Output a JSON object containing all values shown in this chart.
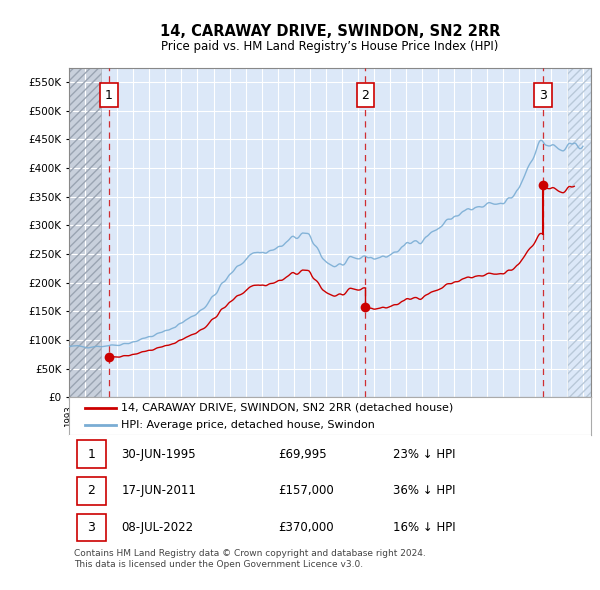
{
  "title": "14, CARAWAY DRIVE, SWINDON, SN2 2RR",
  "subtitle": "Price paid vs. HM Land Registry’s House Price Index (HPI)",
  "footer": "Contains HM Land Registry data © Crown copyright and database right 2024.\nThis data is licensed under the Open Government Licence v3.0.",
  "legend_line1": "14, CARAWAY DRIVE, SWINDON, SN2 2RR (detached house)",
  "legend_line2": "HPI: Average price, detached house, Swindon",
  "transactions": [
    {
      "num": 1,
      "date": "30-JUN-1995",
      "price": "£69,995",
      "pct": "23% ↓ HPI",
      "year": 1995.49
    },
    {
      "num": 2,
      "date": "17-JUN-2011",
      "price": "£157,000",
      "pct": "36% ↓ HPI",
      "year": 2011.46
    },
    {
      "num": 3,
      "date": "08-JUL-2022",
      "price": "£370,000",
      "pct": "16% ↓ HPI",
      "year": 2022.52
    }
  ],
  "transaction_prices": [
    69995,
    157000,
    370000
  ],
  "ylim_max": 575000,
  "yticks": [
    0,
    50000,
    100000,
    150000,
    200000,
    250000,
    300000,
    350000,
    400000,
    450000,
    500000,
    550000
  ],
  "xlim_start": 1993.0,
  "xlim_end": 2025.5,
  "plot_bg_color": "#dce8f8",
  "hatch_left_end": 1995.0,
  "hatch_right_start": 2024.08,
  "grid_color": "#ffffff",
  "red_color": "#cc0000",
  "blue_color": "#7aadd4",
  "hpi_at_purchase1": 90500,
  "hpi_at_purchase2": 247000,
  "hpi_at_purchase3": 443000
}
